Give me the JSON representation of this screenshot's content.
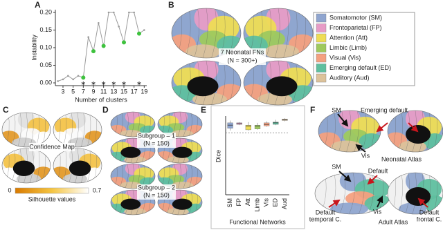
{
  "panel_letters": [
    "A",
    "B",
    "C",
    "D",
    "E",
    "F"
  ],
  "chart_data": [
    {
      "type": "line",
      "ylabel": "Instability",
      "xlabel": "Number of clusters",
      "x": [
        2,
        3,
        4,
        5,
        6,
        7,
        8,
        9,
        10,
        11,
        12,
        13,
        14,
        15,
        16,
        17,
        18,
        19
      ],
      "series": [
        {
          "color": "#9a9a9a",
          "values": [
            0.005,
            0.01,
            0.02,
            0.01,
            0.02,
            0.015,
            0.13,
            0.09,
            0.17,
            0.105,
            0.2,
            0.2,
            0.16,
            0.115,
            0.2,
            0.2,
            0.14,
            0.15
          ]
        },
        {
          "color": "#3ec23e",
          "values": [
            null,
            null,
            null,
            null,
            null,
            0.015,
            null,
            0.09,
            null,
            0.105,
            null,
            null,
            null,
            0.115,
            null,
            null,
            0.14,
            null
          ]
        },
        {
          "color": "#3ec23e",
          "marker": "star",
          "values": [
            null,
            null,
            null,
            null,
            null,
            0,
            null,
            0,
            null,
            0,
            null,
            0,
            null,
            0,
            null,
            null,
            0,
            null
          ]
        }
      ],
      "xlim": [
        1.5,
        19.5
      ],
      "xticks": [
        3,
        5,
        7,
        9,
        11,
        13,
        15,
        17,
        19
      ],
      "ylim": [
        0,
        0.2
      ],
      "yticks": [
        {
          "value": 0,
          "label": "0.00"
        },
        {
          "value": 0.05,
          "label": "0.05"
        },
        {
          "value": 0.1,
          "label": "0.10"
        },
        {
          "value": 0.15,
          "label": "0.15"
        },
        {
          "value": 0.2,
          "label": "0.20"
        }
      ]
    },
    {
      "type": "box",
      "ylabel": "Dice",
      "xlabel": "Functional Networks",
      "categories": [
        "SM",
        "FP",
        "Att",
        "Limb",
        "Vis",
        "ED",
        "Aud"
      ],
      "colors": [
        "#8fa5cf",
        "#e79cc6",
        "#eedc55",
        "#9ec95e",
        "#f4a080",
        "#5fbf9f",
        "#dcc29a"
      ],
      "whisker_high": [
        0.96,
        0.94,
        0.94,
        0.93,
        0.95,
        0.97,
        0.99
      ],
      "q3": [
        0.93,
        0.93,
        0.9,
        0.9,
        0.93,
        0.94,
        0.98
      ],
      "median": [
        0.9,
        0.92,
        0.89,
        0.89,
        0.91,
        0.93,
        0.97
      ],
      "q1": [
        0.86,
        0.91,
        0.84,
        0.85,
        0.89,
        0.91,
        0.96
      ],
      "whisker_low": [
        0.83,
        0.9,
        0.83,
        0.84,
        0.88,
        0.9,
        0.95
      ],
      "reference_line": 0.8,
      "ylim": [
        0,
        1
      ]
    }
  ],
  "panel_b": {
    "caption": [
      "7 Neonatal FNs",
      "(N = 300+)"
    ],
    "legend": [
      {
        "name": "Somatomotor (SM)",
        "color": "#8fa5cf"
      },
      {
        "name": "Frontoparietal (FP)",
        "color": "#e79cc6"
      },
      {
        "name": "Attention (Att)",
        "color": "#eedc55"
      },
      {
        "name": "Limbic (Limb)",
        "color": "#9ec95e"
      },
      {
        "name": "Visual (Vis)",
        "color": "#f4a080"
      },
      {
        "name": "Emerging default (ED)",
        "color": "#5fbf9f"
      },
      {
        "name": "Auditory (Aud)",
        "color": "#dcc29a"
      }
    ]
  },
  "panel_c": {
    "caption": "Confidence Map",
    "colorbar": {
      "min": 0,
      "max": 0.7,
      "label": "Silhouette values"
    }
  },
  "panel_d": {
    "subgroup_1": [
      "Subgroup – 1",
      "(N = 150)"
    ],
    "subgroup_2": [
      "Subgroup – 2",
      "(N = 150)"
    ]
  },
  "panel_f": {
    "neonatal_sm": "SM",
    "emerging_default": "Emerging default",
    "neonatal_vis": "Vis",
    "neonatal_title": "Neonatal Atlas",
    "adult_sm": "SM",
    "adult_default": "Default",
    "default_temporal": [
      "Default",
      "temporal C."
    ],
    "adult_vis": "Vis",
    "default_frontal": [
      "Default",
      "frontal C."
    ],
    "adult_title": "Adult Atlas"
  }
}
